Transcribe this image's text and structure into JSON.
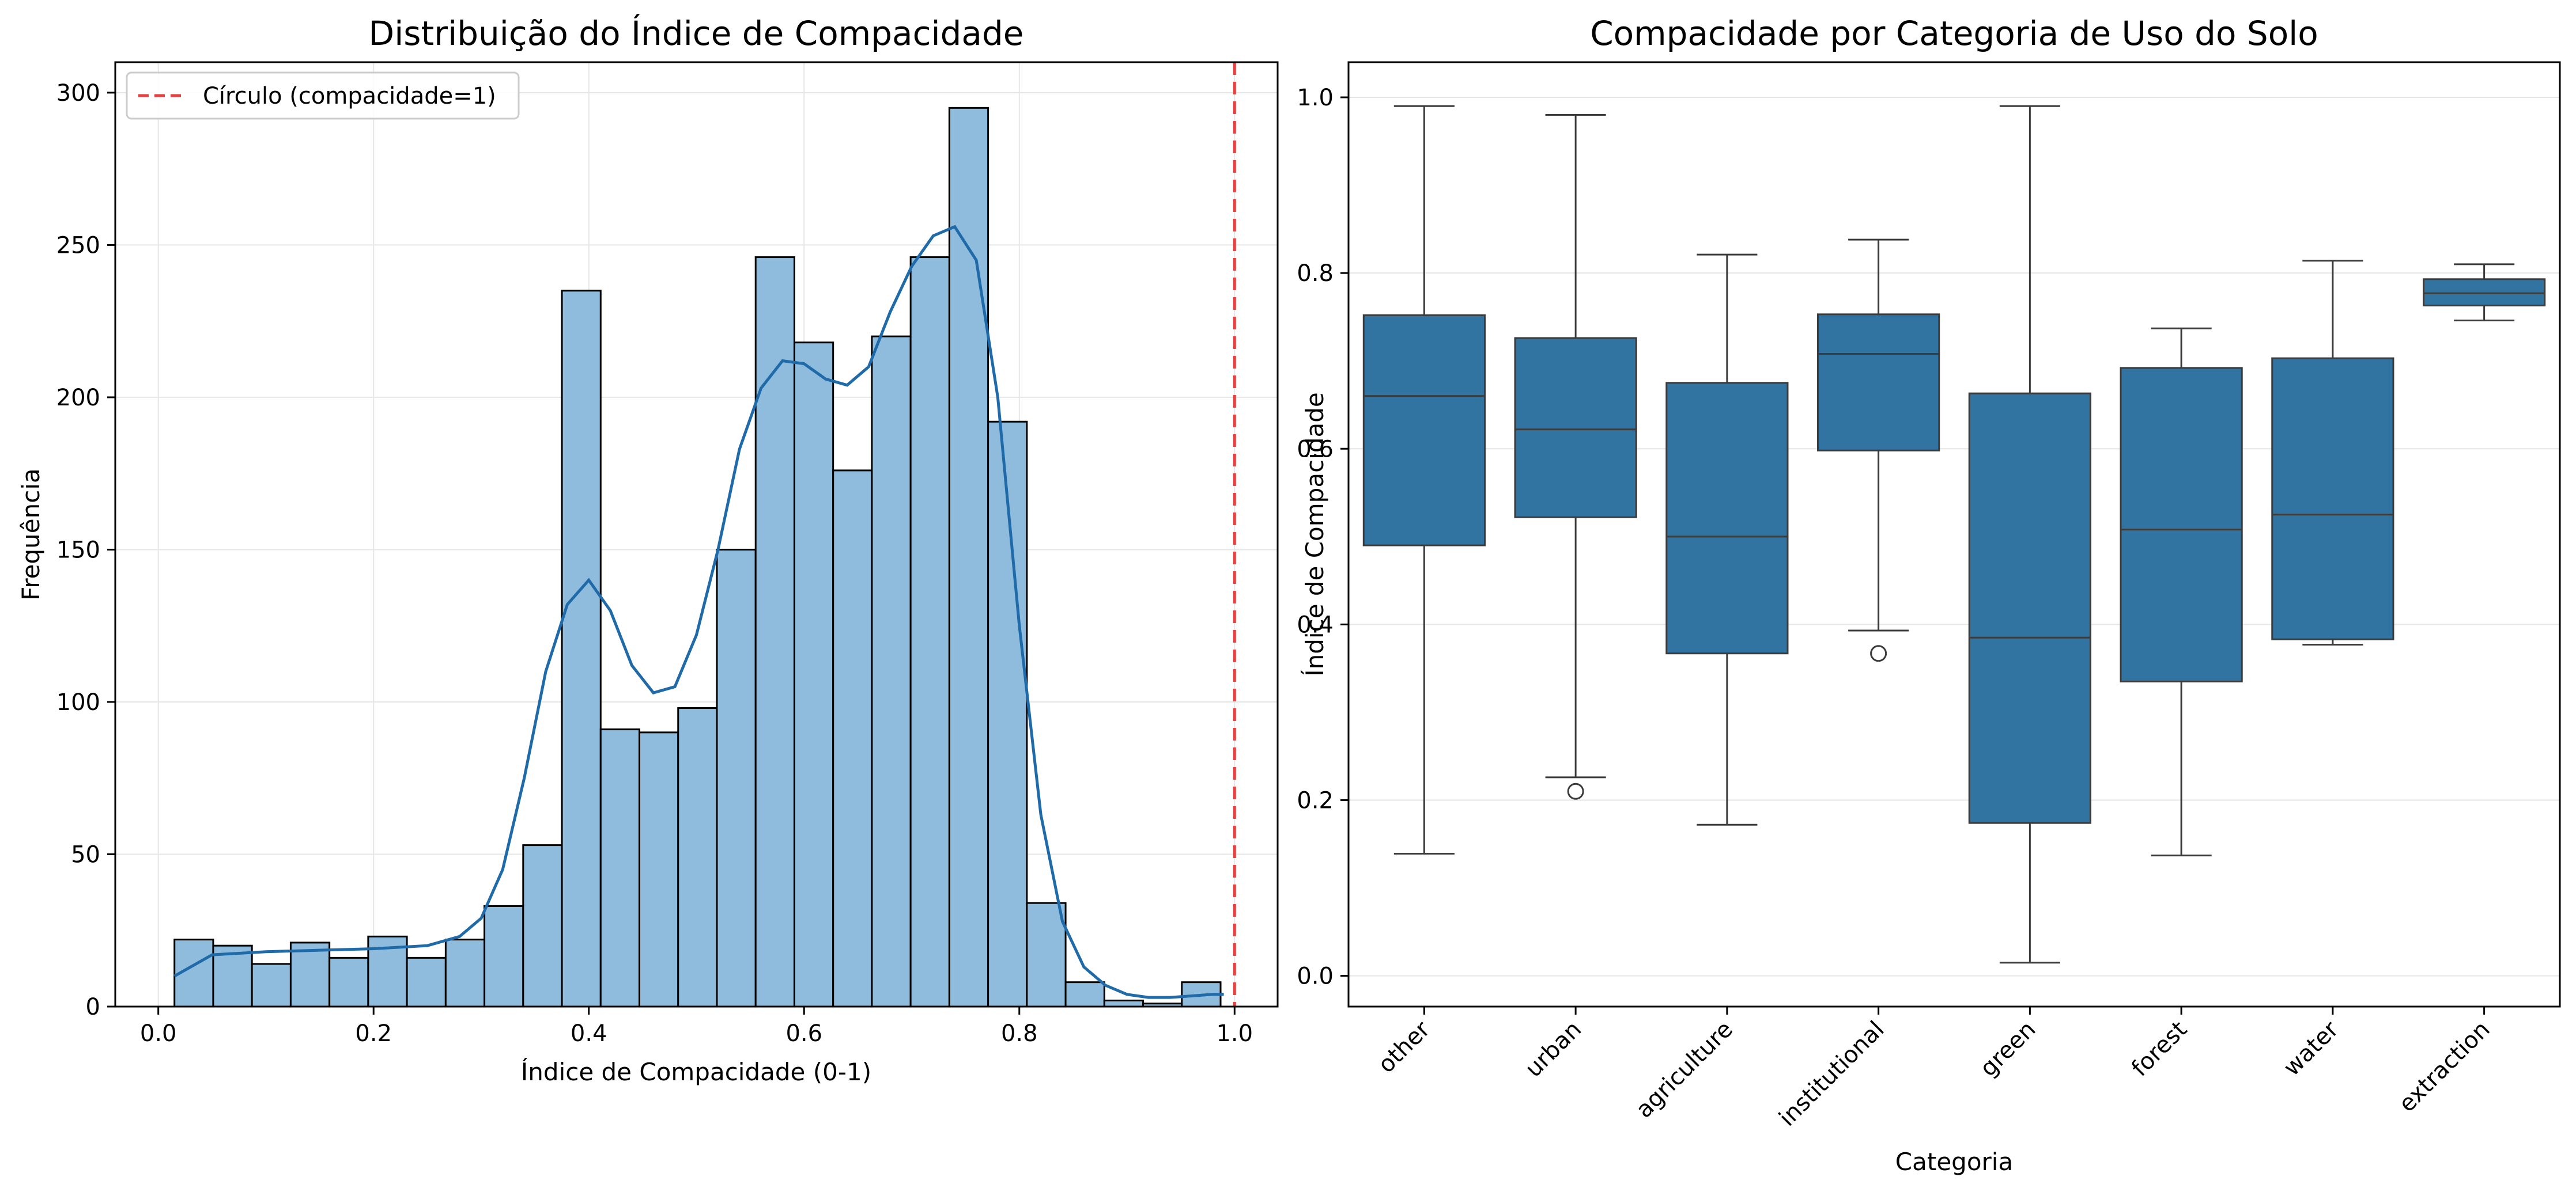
{
  "chart_data": [
    {
      "type": "bar",
      "title": "Distribuição do Índice de Compacidade",
      "xlabel": "Índice de Compacidade (0-1)",
      "ylabel": "Frequência",
      "xlim": [
        -0.04,
        1.04
      ],
      "ylim": [
        0,
        310
      ],
      "xticks": [
        0.0,
        0.2,
        0.4,
        0.6,
        0.8,
        1.0
      ],
      "xtick_labels": [
        "0.0",
        "0.2",
        "0.4",
        "0.6",
        "0.8",
        "1.0"
      ],
      "yticks": [
        0,
        50,
        100,
        150,
        200,
        250,
        300
      ],
      "ytick_labels": [
        "0",
        "50",
        "100",
        "150",
        "200",
        "250",
        "300"
      ],
      "grid": true,
      "bar_color": "#8fbcdd",
      "bar_edge_color": "#000000",
      "bins": {
        "start": 0.015,
        "width": 0.036,
        "counts": [
          22,
          20,
          14,
          21,
          16,
          23,
          16,
          22,
          33,
          53,
          235,
          91,
          90,
          98,
          150,
          246,
          218,
          176,
          220,
          246,
          295,
          192,
          34,
          8,
          2,
          1,
          8
        ]
      },
      "kde": {
        "color": "#1f6aa8",
        "points": [
          [
            0.015,
            10
          ],
          [
            0.05,
            17
          ],
          [
            0.1,
            18
          ],
          [
            0.15,
            18.5
          ],
          [
            0.2,
            19
          ],
          [
            0.25,
            20
          ],
          [
            0.28,
            23
          ],
          [
            0.3,
            29
          ],
          [
            0.32,
            45
          ],
          [
            0.34,
            75
          ],
          [
            0.36,
            110
          ],
          [
            0.38,
            132
          ],
          [
            0.4,
            140
          ],
          [
            0.42,
            130
          ],
          [
            0.44,
            112
          ],
          [
            0.46,
            103
          ],
          [
            0.48,
            105
          ],
          [
            0.5,
            122
          ],
          [
            0.52,
            150
          ],
          [
            0.54,
            183
          ],
          [
            0.56,
            203
          ],
          [
            0.58,
            212
          ],
          [
            0.6,
            211
          ],
          [
            0.62,
            206
          ],
          [
            0.64,
            204
          ],
          [
            0.66,
            210
          ],
          [
            0.68,
            228
          ],
          [
            0.7,
            243
          ],
          [
            0.72,
            253
          ],
          [
            0.74,
            256
          ],
          [
            0.76,
            245
          ],
          [
            0.78,
            200
          ],
          [
            0.8,
            125
          ],
          [
            0.82,
            63
          ],
          [
            0.84,
            28
          ],
          [
            0.86,
            13
          ],
          [
            0.88,
            7
          ],
          [
            0.9,
            4
          ],
          [
            0.92,
            3
          ],
          [
            0.94,
            3
          ],
          [
            0.96,
            3.5
          ],
          [
            0.98,
            4
          ],
          [
            0.99,
            4
          ]
        ]
      },
      "reference_line": {
        "x": 1.0,
        "color": "#e84040",
        "style": "dashed",
        "label": "Círculo (compacidade=1)"
      },
      "legend_position": "top-left"
    },
    {
      "type": "box",
      "title": "Compacidade por Categoria de Uso do Solo",
      "xlabel": "Categoria",
      "ylabel": "Índice de Compacidade",
      "ylim": [
        -0.035,
        1.04
      ],
      "yticks": [
        0.0,
        0.2,
        0.4,
        0.6,
        0.8,
        1.0
      ],
      "ytick_labels": [
        "0.0",
        "0.2",
        "0.4",
        "0.6",
        "0.8",
        "1.0"
      ],
      "grid": true,
      "box_color": "#3274a1",
      "line_color": "#3b3b3b",
      "categories": [
        "other",
        "urban",
        "agriculture",
        "institutional",
        "green",
        "forest",
        "water",
        "extraction"
      ],
      "boxes": [
        {
          "whisker_low": 0.139,
          "q1": 0.49,
          "median": 0.66,
          "q3": 0.752,
          "whisker_high": 0.99,
          "outliers": []
        },
        {
          "whisker_low": 0.226,
          "q1": 0.522,
          "median": 0.622,
          "q3": 0.726,
          "whisker_high": 0.98,
          "outliers": [
            0.21
          ]
        },
        {
          "whisker_low": 0.172,
          "q1": 0.367,
          "median": 0.5,
          "q3": 0.675,
          "whisker_high": 0.821,
          "outliers": []
        },
        {
          "whisker_low": 0.393,
          "q1": 0.598,
          "median": 0.708,
          "q3": 0.753,
          "whisker_high": 0.838,
          "outliers": [
            0.367
          ]
        },
        {
          "whisker_low": 0.015,
          "q1": 0.174,
          "median": 0.385,
          "q3": 0.663,
          "whisker_high": 0.99,
          "outliers": []
        },
        {
          "whisker_low": 0.137,
          "q1": 0.335,
          "median": 0.508,
          "q3": 0.692,
          "whisker_high": 0.737,
          "outliers": []
        },
        {
          "whisker_low": 0.377,
          "q1": 0.383,
          "median": 0.525,
          "q3": 0.703,
          "whisker_high": 0.814,
          "outliers": []
        },
        {
          "whisker_low": 0.746,
          "q1": 0.763,
          "median": 0.777,
          "q3": 0.793,
          "whisker_high": 0.81,
          "outliers": []
        }
      ]
    }
  ]
}
